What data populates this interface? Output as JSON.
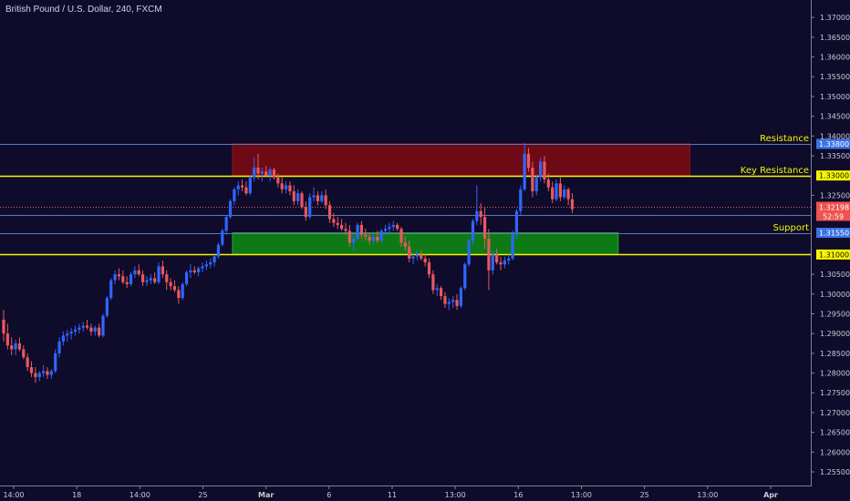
{
  "colors": {
    "background": "#0f0b2a",
    "bull": "#2f66ff",
    "bear": "#e8595e",
    "resistance_zone": "#6d0a15",
    "support_zone": "#0d7a16",
    "key_level": "#f5f500",
    "level_line": "#5a7ab8",
    "price_label_bg": "#ef5350",
    "level_label_bg": "#3b73e6",
    "axis_text": "#c9cbd8"
  },
  "chart_data": {
    "type": "candlestick",
    "title": "British Pound / U.S. Dollar, 240, FXCM",
    "ylim": [
      1.252,
      1.3735
    ],
    "y_ticks": [
      "1.37000",
      "1.36500",
      "1.36000",
      "1.35500",
      "1.35000",
      "1.34500",
      "1.34000",
      "1.33500",
      "1.32500",
      "1.30500",
      "1.30000",
      "1.29500",
      "1.29000",
      "1.28500",
      "1.28000",
      "1.27500",
      "1.27000",
      "1.26500",
      "1.26000",
      "1.25500"
    ],
    "x_ticks": [
      "14:00",
      "18",
      "14:00",
      "25",
      "Mar",
      "6",
      "11",
      "13:00",
      "16",
      "13:00",
      "25",
      "13:00",
      "Apr"
    ],
    "x_tick_bold": [
      "Mar",
      "Apr"
    ],
    "total_bars": 203,
    "zones": [
      {
        "label": "Resistance zone",
        "y_top": 1.338,
        "y_bottom": 1.33,
        "bar_start": 58,
        "bar_end": 173,
        "kind": "resistance"
      },
      {
        "label": "Support zone",
        "y_top": 1.3155,
        "y_bottom": 1.31,
        "bar_start": 58,
        "bar_end": 155,
        "kind": "support"
      }
    ],
    "levels": [
      {
        "value": 1.338,
        "label": "Resistance",
        "price": "1.33800",
        "style": "thin"
      },
      {
        "value": 1.33,
        "label": "Key Resistance",
        "price": "1.33000",
        "style": "key"
      },
      {
        "value": 1.32,
        "label": "",
        "price": "1.32000",
        "style": "thin"
      },
      {
        "value": 1.3155,
        "label": "Support",
        "price": "1.31550",
        "style": "thin"
      },
      {
        "value": 1.31,
        "label": "",
        "price": "1.31000",
        "style": "key"
      }
    ],
    "current_price": {
      "value": 1.32198,
      "price": "1.32198",
      "countdown": "52:59"
    },
    "candles": [
      [
        1.2935,
        1.296,
        1.288,
        1.29
      ],
      [
        1.29,
        1.2925,
        1.286,
        1.287
      ],
      [
        1.287,
        1.289,
        1.2845,
        1.286
      ],
      [
        1.286,
        1.2885,
        1.2845,
        1.2875
      ],
      [
        1.2875,
        1.289,
        1.2855,
        1.286
      ],
      [
        1.286,
        1.287,
        1.2835,
        1.284
      ],
      [
        1.284,
        1.285,
        1.2805,
        1.2815
      ],
      [
        1.2815,
        1.283,
        1.279,
        1.28
      ],
      [
        1.28,
        1.2815,
        1.2775,
        1.279
      ],
      [
        1.279,
        1.2805,
        1.278,
        1.28
      ],
      [
        1.28,
        1.282,
        1.279,
        1.2805
      ],
      [
        1.2805,
        1.2815,
        1.2785,
        1.2795
      ],
      [
        1.2795,
        1.281,
        1.2785,
        1.2805
      ],
      [
        1.2805,
        1.286,
        1.28,
        1.285
      ],
      [
        1.285,
        1.289,
        1.284,
        1.288
      ],
      [
        1.288,
        1.2905,
        1.287,
        1.2895
      ],
      [
        1.2895,
        1.291,
        1.288,
        1.29
      ],
      [
        1.29,
        1.2915,
        1.2885,
        1.2905
      ],
      [
        1.2905,
        1.292,
        1.2895,
        1.291
      ],
      [
        1.291,
        1.2925,
        1.29,
        1.2915
      ],
      [
        1.2915,
        1.293,
        1.2905,
        1.292
      ],
      [
        1.292,
        1.2935,
        1.291,
        1.2915
      ],
      [
        1.2915,
        1.2925,
        1.2895,
        1.2905
      ],
      [
        1.2905,
        1.292,
        1.2895,
        1.2915
      ],
      [
        1.2915,
        1.2925,
        1.289,
        1.2895
      ],
      [
        1.2895,
        1.295,
        1.289,
        1.2945
      ],
      [
        1.2945,
        1.2995,
        1.294,
        1.299
      ],
      [
        1.299,
        1.304,
        1.2985,
        1.3035
      ],
      [
        1.3035,
        1.306,
        1.3025,
        1.305
      ],
      [
        1.305,
        1.3065,
        1.3035,
        1.3045
      ],
      [
        1.3045,
        1.306,
        1.3025,
        1.303
      ],
      [
        1.303,
        1.3045,
        1.3015,
        1.3025
      ],
      [
        1.3025,
        1.3055,
        1.302,
        1.305
      ],
      [
        1.305,
        1.307,
        1.304,
        1.306
      ],
      [
        1.306,
        1.3075,
        1.3045,
        1.305
      ],
      [
        1.305,
        1.306,
        1.302,
        1.303
      ],
      [
        1.303,
        1.3045,
        1.302,
        1.3035
      ],
      [
        1.3035,
        1.305,
        1.3025,
        1.304
      ],
      [
        1.304,
        1.3055,
        1.3025,
        1.303
      ],
      [
        1.303,
        1.308,
        1.3025,
        1.307
      ],
      [
        1.307,
        1.3085,
        1.304,
        1.305
      ],
      [
        1.305,
        1.306,
        1.301,
        1.303
      ],
      [
        1.303,
        1.304,
        1.301,
        1.302
      ],
      [
        1.302,
        1.3035,
        1.3005,
        1.301
      ],
      [
        1.301,
        1.302,
        1.2975,
        1.299
      ],
      [
        1.299,
        1.303,
        1.2985,
        1.3025
      ],
      [
        1.3025,
        1.306,
        1.302,
        1.3055
      ],
      [
        1.3055,
        1.3075,
        1.304,
        1.306
      ],
      [
        1.306,
        1.307,
        1.305,
        1.3055
      ],
      [
        1.3055,
        1.307,
        1.3045,
        1.3065
      ],
      [
        1.3065,
        1.308,
        1.3055,
        1.307
      ],
      [
        1.307,
        1.3085,
        1.306,
        1.3075
      ],
      [
        1.3075,
        1.309,
        1.3065,
        1.308
      ],
      [
        1.308,
        1.31,
        1.307,
        1.3095
      ],
      [
        1.3095,
        1.313,
        1.309,
        1.3125
      ],
      [
        1.3125,
        1.3165,
        1.312,
        1.316
      ],
      [
        1.316,
        1.32,
        1.315,
        1.3195
      ],
      [
        1.3195,
        1.324,
        1.319,
        1.3235
      ],
      [
        1.3235,
        1.327,
        1.3225,
        1.3265
      ],
      [
        1.3265,
        1.3285,
        1.325,
        1.3275
      ],
      [
        1.3275,
        1.329,
        1.326,
        1.327
      ],
      [
        1.327,
        1.3285,
        1.325,
        1.3255
      ],
      [
        1.3255,
        1.33,
        1.325,
        1.3295
      ],
      [
        1.3295,
        1.3345,
        1.3285,
        1.332
      ],
      [
        1.332,
        1.3355,
        1.329,
        1.3305
      ],
      [
        1.3305,
        1.332,
        1.3285,
        1.331
      ],
      [
        1.331,
        1.3325,
        1.3295,
        1.33
      ],
      [
        1.33,
        1.332,
        1.3285,
        1.3315
      ],
      [
        1.3315,
        1.332,
        1.329,
        1.3295
      ],
      [
        1.3295,
        1.3305,
        1.327,
        1.328
      ],
      [
        1.328,
        1.3295,
        1.3255,
        1.3265
      ],
      [
        1.3265,
        1.3285,
        1.3255,
        1.3275
      ],
      [
        1.3275,
        1.3285,
        1.325,
        1.326
      ],
      [
        1.326,
        1.3275,
        1.3225,
        1.3235
      ],
      [
        1.3235,
        1.3265,
        1.3225,
        1.3255
      ],
      [
        1.3255,
        1.326,
        1.3215,
        1.322
      ],
      [
        1.322,
        1.3235,
        1.3185,
        1.3195
      ],
      [
        1.3195,
        1.3255,
        1.319,
        1.3245
      ],
      [
        1.3245,
        1.327,
        1.3235,
        1.325
      ],
      [
        1.325,
        1.326,
        1.3225,
        1.3235
      ],
      [
        1.3235,
        1.326,
        1.323,
        1.325
      ],
      [
        1.325,
        1.3265,
        1.3215,
        1.3225
      ],
      [
        1.3225,
        1.3235,
        1.318,
        1.319
      ],
      [
        1.319,
        1.3205,
        1.317,
        1.318
      ],
      [
        1.318,
        1.3195,
        1.3165,
        1.3175
      ],
      [
        1.3175,
        1.319,
        1.316,
        1.3165
      ],
      [
        1.3165,
        1.318,
        1.315,
        1.316
      ],
      [
        1.316,
        1.3175,
        1.312,
        1.313
      ],
      [
        1.313,
        1.315,
        1.311,
        1.314
      ],
      [
        1.314,
        1.318,
        1.3135,
        1.3175
      ],
      [
        1.3175,
        1.3185,
        1.314,
        1.315
      ],
      [
        1.315,
        1.3165,
        1.3135,
        1.3145
      ],
      [
        1.3145,
        1.3155,
        1.3125,
        1.3135
      ],
      [
        1.3135,
        1.315,
        1.3125,
        1.3145
      ],
      [
        1.3145,
        1.316,
        1.313,
        1.3135
      ],
      [
        1.3135,
        1.3165,
        1.313,
        1.316
      ],
      [
        1.316,
        1.3175,
        1.315,
        1.3165
      ],
      [
        1.3165,
        1.318,
        1.3155,
        1.317
      ],
      [
        1.317,
        1.3185,
        1.316,
        1.3175
      ],
      [
        1.3175,
        1.318,
        1.316,
        1.3165
      ],
      [
        1.3165,
        1.317,
        1.312,
        1.313
      ],
      [
        1.313,
        1.3145,
        1.311,
        1.312
      ],
      [
        1.312,
        1.3135,
        1.308,
        1.309
      ],
      [
        1.309,
        1.3105,
        1.3075,
        1.3095
      ],
      [
        1.3095,
        1.311,
        1.3085,
        1.31
      ],
      [
        1.31,
        1.311,
        1.3085,
        1.309
      ],
      [
        1.309,
        1.31,
        1.307,
        1.308
      ],
      [
        1.308,
        1.309,
        1.304,
        1.305
      ],
      [
        1.305,
        1.306,
        1.3,
        1.301
      ],
      [
        1.301,
        1.3025,
        1.2995,
        1.3015
      ],
      [
        1.3015,
        1.302,
        1.2985,
        1.2995
      ],
      [
        1.2995,
        1.3005,
        1.2965,
        1.2975
      ],
      [
        1.2975,
        1.299,
        1.296,
        1.298
      ],
      [
        1.298,
        1.2995,
        1.2965,
        1.2985
      ],
      [
        1.2985,
        1.3,
        1.296,
        1.297
      ],
      [
        1.297,
        1.302,
        1.2965,
        1.3015
      ],
      [
        1.3015,
        1.308,
        1.301,
        1.3075
      ],
      [
        1.3075,
        1.314,
        1.307,
        1.3135
      ],
      [
        1.3135,
        1.319,
        1.3125,
        1.3185
      ],
      [
        1.3185,
        1.3275,
        1.3175,
        1.321
      ],
      [
        1.321,
        1.323,
        1.3175,
        1.3195
      ],
      [
        1.3195,
        1.322,
        1.3115,
        1.314
      ],
      [
        1.314,
        1.3165,
        1.301,
        1.306
      ],
      [
        1.306,
        1.311,
        1.305,
        1.31
      ],
      [
        1.31,
        1.3115,
        1.3075,
        1.308
      ],
      [
        1.308,
        1.3095,
        1.306,
        1.3075
      ],
      [
        1.3075,
        1.3095,
        1.3065,
        1.3085
      ],
      [
        1.3085,
        1.31,
        1.3075,
        1.309
      ],
      [
        1.309,
        1.316,
        1.3085,
        1.315
      ],
      [
        1.315,
        1.3215,
        1.314,
        1.321
      ],
      [
        1.321,
        1.3275,
        1.32,
        1.3265
      ],
      [
        1.3265,
        1.3382,
        1.326,
        1.3355
      ],
      [
        1.3355,
        1.337,
        1.331,
        1.332
      ],
      [
        1.332,
        1.3335,
        1.3245,
        1.326
      ],
      [
        1.326,
        1.33,
        1.325,
        1.3295
      ],
      [
        1.3295,
        1.3345,
        1.3285,
        1.3335
      ],
      [
        1.3335,
        1.335,
        1.328,
        1.329
      ],
      [
        1.329,
        1.3305,
        1.326,
        1.327
      ],
      [
        1.327,
        1.3285,
        1.323,
        1.324
      ],
      [
        1.324,
        1.329,
        1.3235,
        1.328
      ],
      [
        1.328,
        1.3295,
        1.3235,
        1.3245
      ],
      [
        1.3245,
        1.3275,
        1.324,
        1.3265
      ],
      [
        1.3265,
        1.327,
        1.3225,
        1.324
      ],
      [
        1.324,
        1.3255,
        1.3205,
        1.3215
      ]
    ]
  }
}
